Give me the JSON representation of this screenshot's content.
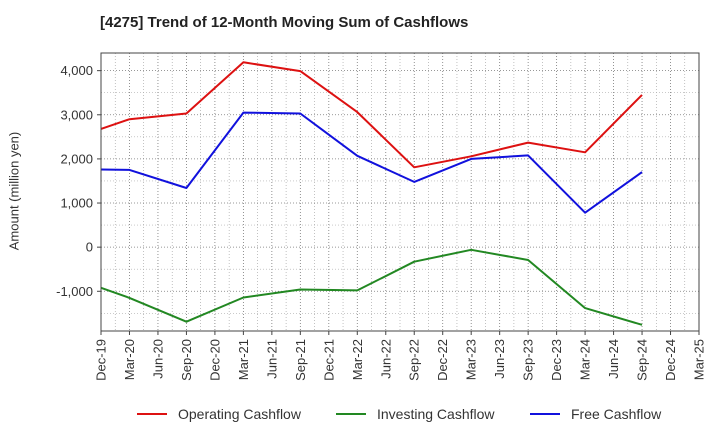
{
  "chart_data": {
    "type": "line",
    "title": "[4275]  Trend of 12-Month Moving Sum of Cashflows",
    "xlabel": "",
    "ylabel": "Amount (million yen)",
    "categories": [
      "Dec-19",
      "Mar-20",
      "Jun-20",
      "Sep-20",
      "Dec-20",
      "Mar-21",
      "Jun-21",
      "Sep-21",
      "Dec-21",
      "Mar-22",
      "Jun-22",
      "Sep-22",
      "Dec-22",
      "Mar-23",
      "Jun-23",
      "Sep-23",
      "Dec-23",
      "Mar-24",
      "Jun-24",
      "Sep-24",
      "Dec-24",
      "Mar-25"
    ],
    "yticks": [
      -1000,
      0,
      1000,
      2000,
      3000,
      4000
    ],
    "ytick_labels": [
      "-1,000",
      "0",
      "1,000",
      "2,000",
      "3,000",
      "4,000"
    ],
    "ylim": [
      -1900,
      4400
    ],
    "grid": true,
    "legend_position": "bottom",
    "series": [
      {
        "name": "Operating Cashflow",
        "color": "#dd1111",
        "values": [
          2680,
          2900,
          null,
          3030,
          null,
          4190,
          null,
          3990,
          null,
          3060,
          null,
          1810,
          null,
          2060,
          null,
          2370,
          null,
          2150,
          null,
          3450,
          null,
          null
        ]
      },
      {
        "name": "Investing Cashflow",
        "color": "#228822",
        "values": [
          -920,
          -1150,
          null,
          -1690,
          null,
          -1140,
          null,
          -960,
          null,
          -980,
          null,
          -330,
          null,
          -60,
          null,
          -290,
          null,
          -1380,
          null,
          -1760,
          null,
          null
        ]
      },
      {
        "name": "Free Cashflow",
        "color": "#1111dd",
        "values": [
          1760,
          1750,
          null,
          1340,
          null,
          3050,
          null,
          3030,
          null,
          2070,
          null,
          1480,
          null,
          2000,
          null,
          2080,
          null,
          780,
          null,
          1700,
          null,
          null
        ]
      }
    ]
  }
}
